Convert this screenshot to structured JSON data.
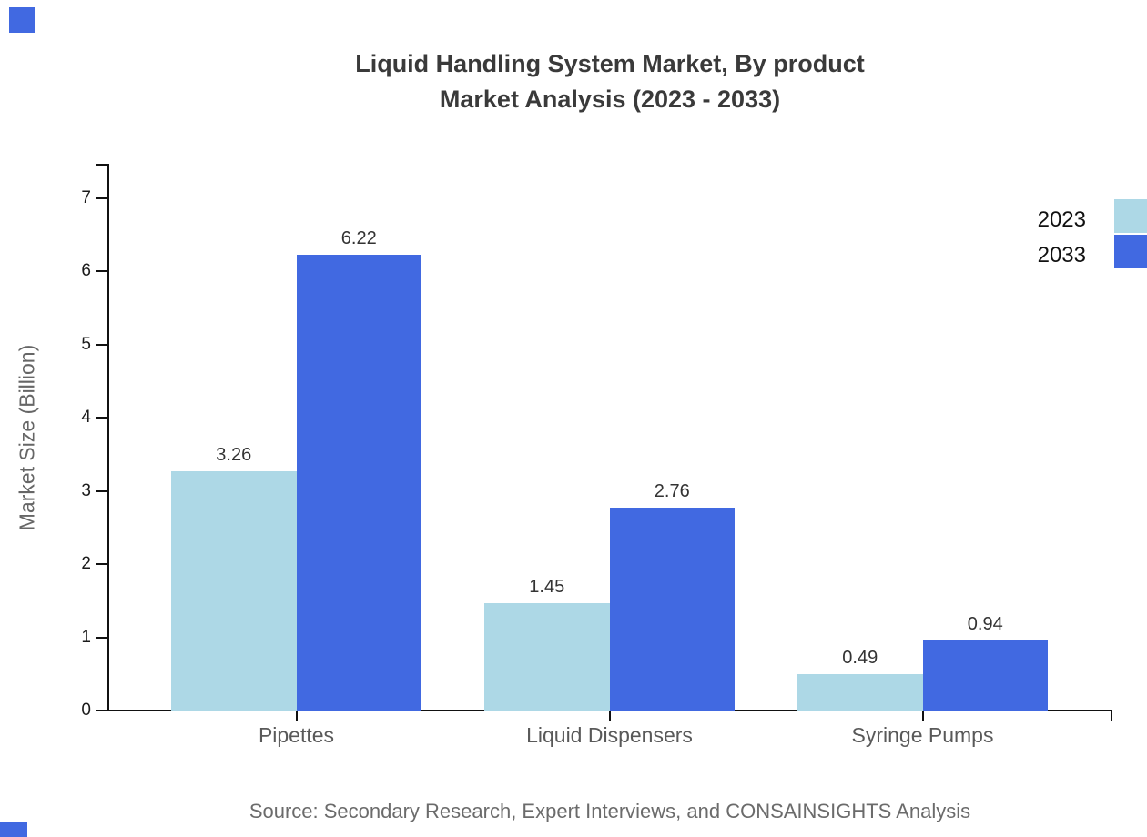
{
  "title": {
    "line1": "Liquid Handling System Market, By product",
    "line2": "Market Analysis (2023 - 2033)"
  },
  "chart_data": {
    "type": "bar",
    "categories": [
      "Pipettes",
      "Liquid Dispensers",
      "Syringe Pumps"
    ],
    "series": [
      {
        "name": "2023",
        "color": "#ADD8E6",
        "values": [
          3.26,
          1.45,
          0.49
        ]
      },
      {
        "name": "2033",
        "color": "#4169E1",
        "values": [
          6.22,
          2.76,
          0.94
        ]
      }
    ],
    "title": "Liquid Handling System Market, By product Market Analysis (2023 - 2033)",
    "xlabel": "",
    "ylabel": "Market Size (Billion)",
    "yticks": [
      0,
      1,
      2,
      3,
      4,
      5,
      6,
      7
    ],
    "ylim": [
      0,
      7.46
    ],
    "grid": false,
    "legend_position": "top-right-outside",
    "value_labels_shown": true
  },
  "source_note": "Source: Secondary Research, Expert Interviews, and CONSAINSIGHTS Analysis",
  "colors": {
    "series_2023": "#ADD8E6",
    "series_2033": "#4169E1",
    "axis": "#111111",
    "title_text": "#3a3a3a",
    "muted_text": "#666666"
  },
  "decorations": {
    "corner_mark_color": "#4169E1"
  }
}
